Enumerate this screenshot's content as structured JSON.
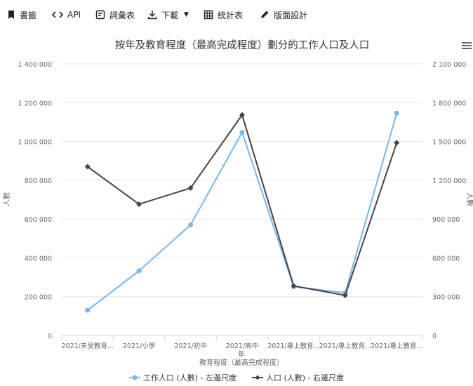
{
  "toolbar": {
    "bookmark_label": "書籤",
    "api_label": "API",
    "glossary_label": "詞彙表",
    "download_label": "下載",
    "table_label": "統計表",
    "design_label": "版面設計"
  },
  "colors": {
    "work": "#7cb5ec",
    "pop": "#434348"
  },
  "chart_data": {
    "type": "line",
    "title": "按年及教育程度（最高完成程度）劃分的工作人口及人口",
    "xlabel_lines": [
      "年",
      "教育程度（最高完成程度）"
    ],
    "ylabel_left": "人數",
    "ylabel_right": "人數",
    "categories": [
      "2021/未受教育...",
      "2021/小學",
      "2021/初中",
      "2021/高中",
      "2021/專上教育...",
      "2021/專上教育...",
      "2021/專上教育..."
    ],
    "series": [
      {
        "name": "工作人口 (人數) - 左邊尺度",
        "axis": "left",
        "values": [
          130000,
          333000,
          570000,
          1047000,
          252000,
          220000,
          1146000
        ]
      },
      {
        "name": "人口 (人數) - 右邊尺度",
        "axis": "right",
        "values": [
          1305000,
          1015000,
          1140000,
          1705000,
          383000,
          310000,
          1490000
        ]
      }
    ],
    "ylim_left": [
      0,
      1400000
    ],
    "ylim_right": [
      0,
      2100000
    ],
    "yticks_left": [
      "0",
      "200 000",
      "400 000",
      "600 000",
      "800 000",
      "1 000 000",
      "1 200 000",
      "1 400 000"
    ],
    "yticks_right": [
      "0",
      "300 000",
      "600 000",
      "900 000",
      "1 200 000",
      "1 500 000",
      "1 800 000",
      "2 100 000"
    ],
    "grid": true,
    "legend_position": "bottom"
  }
}
